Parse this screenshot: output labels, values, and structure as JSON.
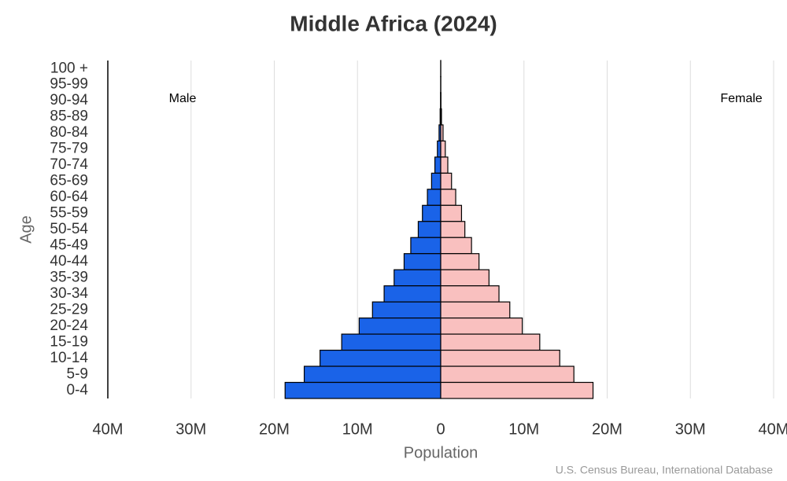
{
  "chart_data": {
    "type": "pyramid",
    "title": "Middle Africa (2024)",
    "x_label": "Population",
    "y_label": "Age",
    "source": "U.S. Census Bureau, International Database",
    "categories": [
      "100 +",
      "95-99",
      "90-94",
      "85-89",
      "80-84",
      "75-79",
      "70-74",
      "65-69",
      "60-64",
      "55-59",
      "50-54",
      "45-49",
      "40-44",
      "35-39",
      "30-34",
      "25-29",
      "20-24",
      "15-19",
      "10-14",
      "5-9",
      "0-4"
    ],
    "series": [
      {
        "name": "Male",
        "color": "#1a63e8",
        "side": "left",
        "values": [
          0.001,
          0.005,
          0.02,
          0.07,
          0.2,
          0.4,
          0.7,
          1.1,
          1.6,
          2.2,
          2.7,
          3.6,
          4.4,
          5.6,
          6.8,
          8.2,
          9.8,
          11.9,
          14.5,
          16.4,
          18.7
        ]
      },
      {
        "name": "Female",
        "color": "#f9c0bf",
        "side": "right",
        "values": [
          0.002,
          0.008,
          0.03,
          0.09,
          0.28,
          0.55,
          0.85,
          1.3,
          1.8,
          2.5,
          2.9,
          3.7,
          4.6,
          5.8,
          7.0,
          8.3,
          9.8,
          11.9,
          14.3,
          16.0,
          18.3
        ]
      }
    ],
    "xlim": [
      -40,
      40
    ],
    "xticks": [
      {
        "value": -40,
        "label": "40M"
      },
      {
        "value": -30,
        "label": "30M"
      },
      {
        "value": -20,
        "label": "20M"
      },
      {
        "value": -10,
        "label": "10M"
      },
      0,
      {
        "value": 10,
        "label": "10M"
      },
      {
        "value": 20,
        "label": "20M"
      },
      {
        "value": 30,
        "label": "30M"
      },
      {
        "value": 40,
        "label": "40M"
      }
    ],
    "grid": true
  }
}
